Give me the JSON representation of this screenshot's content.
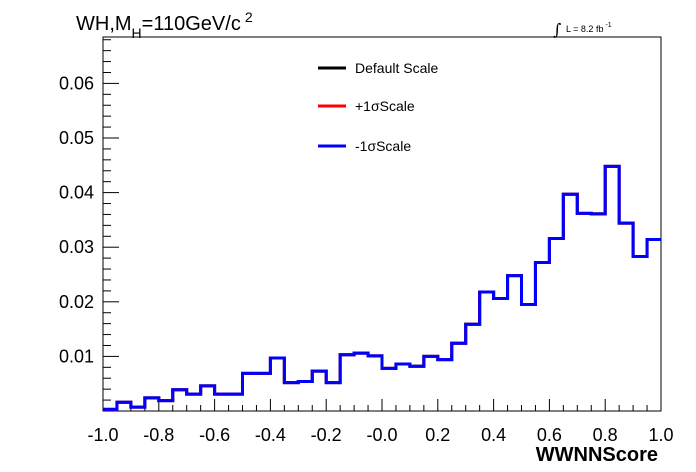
{
  "chart_data": {
    "type": "line",
    "title_main": "WH,M",
    "title_sub": "H",
    "title_rest": "=110GeV/c",
    "title_sup": "2",
    "annotation_int": "∫",
    "annotation_label": "L = 8.2 fb",
    "annotation_sup": "-1",
    "xlabel": "WWNNScore",
    "ylabel": "",
    "xlim": [
      -1.0,
      1.0
    ],
    "ylim": [
      0.0,
      0.0685
    ],
    "x_ticks": [
      -1.0,
      -0.8,
      -0.6,
      -0.4,
      -0.2,
      0.0,
      0.2,
      0.4,
      0.6,
      0.8,
      1.0
    ],
    "x_tick_labels": [
      "-1.0",
      "-0.8",
      "-0.6",
      "-0.4",
      "-0.2",
      "-0.0",
      "0.2",
      "0.4",
      "0.6",
      "0.8",
      "1.0"
    ],
    "y_ticks": [
      0.01,
      0.02,
      0.03,
      0.04,
      0.05,
      0.06
    ],
    "y_tick_labels": [
      "0.01",
      "0.02",
      "0.03",
      "0.04",
      "0.05",
      "0.06"
    ],
    "bin_edges": [
      -1.0,
      -0.95,
      -0.9,
      -0.85,
      -0.8,
      -0.75,
      -0.7,
      -0.65,
      -0.6,
      -0.55,
      -0.5,
      -0.45,
      -0.4,
      -0.35,
      -0.3,
      -0.25,
      -0.2,
      -0.15,
      -0.1,
      -0.05,
      0.0,
      0.05,
      0.1,
      0.15,
      0.2,
      0.25,
      0.3,
      0.35,
      0.4,
      0.45,
      0.5,
      0.55,
      0.6,
      0.65,
      0.7,
      0.75,
      0.8,
      0.85,
      0.9,
      0.95,
      1.0
    ],
    "series": [
      {
        "name": "Default Scale",
        "color": "#000000",
        "values": [
          0.0003,
          0.0016,
          0.0007,
          0.0024,
          0.0019,
          0.0039,
          0.0031,
          0.0046,
          0.0031,
          0.0031,
          0.0069,
          0.0069,
          0.0097,
          0.0052,
          0.0054,
          0.0073,
          0.0052,
          0.0103,
          0.0106,
          0.0101,
          0.0078,
          0.0086,
          0.0082,
          0.01,
          0.0094,
          0.0124,
          0.0159,
          0.0218,
          0.0206,
          0.0248,
          0.0195,
          0.0272,
          0.0316,
          0.0397,
          0.0362,
          0.0361,
          0.0448,
          0.0344,
          0.0283,
          0.0314
        ]
      },
      {
        "name": "+1σScale",
        "color": "#ff0000",
        "values": [
          0.0003,
          0.0016,
          0.0007,
          0.0024,
          0.0019,
          0.0039,
          0.0031,
          0.0046,
          0.0031,
          0.0031,
          0.0069,
          0.0069,
          0.0097,
          0.0052,
          0.0054,
          0.0073,
          0.0052,
          0.0103,
          0.0106,
          0.0101,
          0.0078,
          0.0086,
          0.0082,
          0.01,
          0.0094,
          0.0124,
          0.0159,
          0.0218,
          0.0206,
          0.0248,
          0.0195,
          0.0272,
          0.0316,
          0.0397,
          0.0362,
          0.0361,
          0.0448,
          0.0344,
          0.0283,
          0.0314
        ]
      },
      {
        "name": "-1σScale",
        "color": "#0000ff",
        "values": [
          0.0003,
          0.0016,
          0.0007,
          0.0024,
          0.0019,
          0.0039,
          0.0031,
          0.0046,
          0.0031,
          0.0031,
          0.0069,
          0.0069,
          0.0097,
          0.0052,
          0.0054,
          0.0073,
          0.0052,
          0.0103,
          0.0106,
          0.0101,
          0.0078,
          0.0086,
          0.0082,
          0.01,
          0.0094,
          0.0124,
          0.0159,
          0.0218,
          0.0206,
          0.0248,
          0.0195,
          0.0272,
          0.0316,
          0.0397,
          0.0362,
          0.0361,
          0.0448,
          0.0344,
          0.0283,
          0.0314
        ]
      }
    ],
    "grid": false,
    "legend_position": "top-center"
  }
}
